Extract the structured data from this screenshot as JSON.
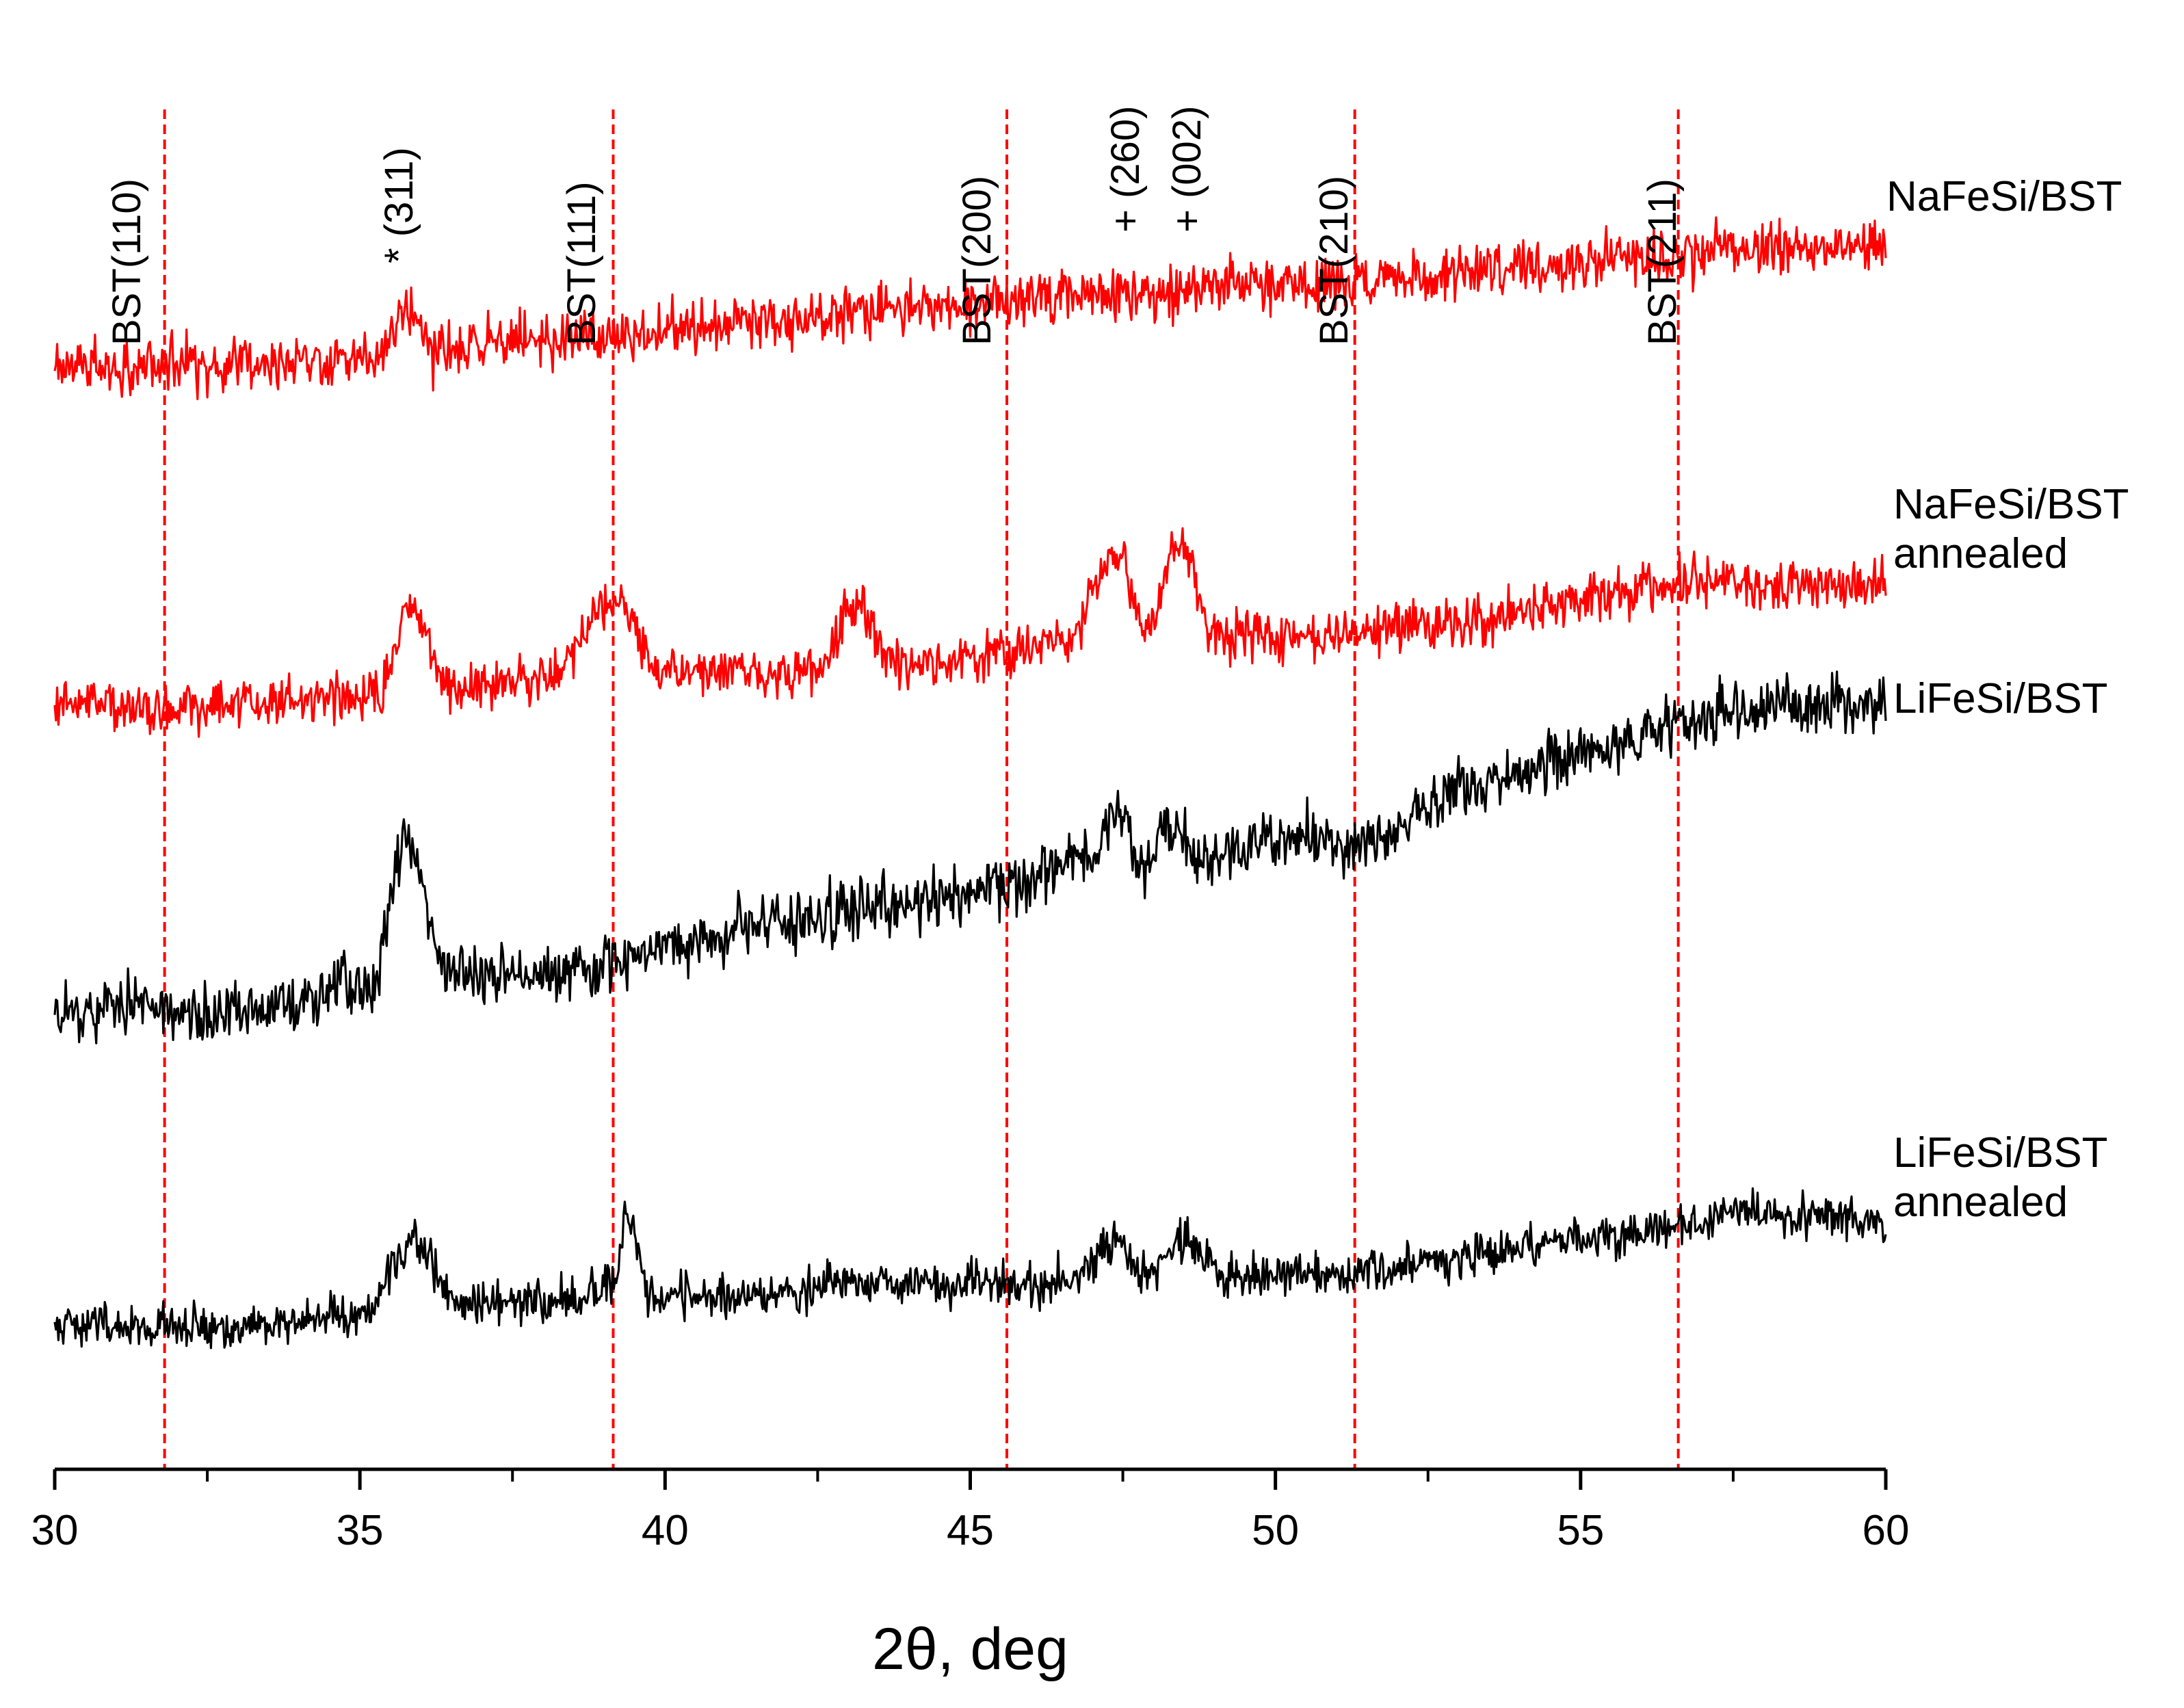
{
  "chart_data": {
    "type": "line",
    "title": "",
    "xlabel": "2θ, deg",
    "ylabel": "",
    "xlim": [
      30,
      60
    ],
    "xticks": [
      30,
      35,
      40,
      45,
      50,
      55,
      60
    ],
    "xtick_labels": [
      "30",
      "35",
      "40",
      "45",
      "50",
      "55",
      "60"
    ],
    "minor_tick_step": 2.5,
    "y_axis_visible": false,
    "grid": false,
    "reference_lines": [
      {
        "x": 31.8,
        "label": "BST(110)",
        "color": "#ff0000"
      },
      {
        "x": 39.15,
        "label": "BST(111)",
        "color": "#ff0000"
      },
      {
        "x": 45.6,
        "label": "BST(200)",
        "color": "#ff0000"
      },
      {
        "x": 51.3,
        "label": "BST(210)",
        "color": "#ff0000"
      },
      {
        "x": 56.6,
        "label": "BST(211)",
        "color": "#ff0000"
      }
    ],
    "peak_markers": [
      {
        "x": 35.7,
        "label": "* (311)"
      },
      {
        "x": 47.4,
        "label": "+ (260)"
      },
      {
        "x": 48.4,
        "label": "+ (002)"
      }
    ],
    "series": [
      {
        "name": "NaFeSi/BST",
        "label_lines": [
          "NaFeSi/BST"
        ],
        "color": "#ff0000",
        "noise": 9,
        "x": [
          30,
          32,
          34,
          35.3,
          35.75,
          36.2,
          38,
          39.15,
          40,
          42,
          43.5,
          45,
          46,
          48,
          50,
          51.3,
          52,
          54,
          56,
          58,
          60
        ],
        "y": [
          0.55,
          0.55,
          0.6,
          0.62,
          1.1,
          0.7,
          0.78,
          0.82,
          0.9,
          1.0,
          1.1,
          1.15,
          1.2,
          1.28,
          1.35,
          1.38,
          1.42,
          1.52,
          1.6,
          1.68,
          1.75
        ]
      },
      {
        "name": "NaFeSi/BST annealed",
        "label_lines": [
          "NaFeSi/BST",
          "annealed"
        ],
        "color": "#ff0000",
        "noise": 8,
        "x": [
          30,
          31.8,
          33,
          35.3,
          35.8,
          36.5,
          38,
          39.2,
          40,
          42.5,
          43.1,
          43.8,
          45,
          46.5,
          47.4,
          47.9,
          48.4,
          49,
          51,
          53,
          55,
          57.3,
          58,
          60
        ],
        "y": [
          0.05,
          0.0,
          0.05,
          0.1,
          0.85,
          0.15,
          0.25,
          0.9,
          0.3,
          0.3,
          0.9,
          0.35,
          0.4,
          0.55,
          1.25,
          0.7,
          1.4,
          0.6,
          0.6,
          0.72,
          0.9,
          1.1,
          1.0,
          1.05
        ]
      },
      {
        "name": "LiFeSi/BST",
        "label_lines": [
          "LiFeSi/BST"
        ],
        "color": "#000000",
        "noise": 10,
        "x": [
          30,
          31.8,
          33,
          35.2,
          35.75,
          36.4,
          38,
          39.15,
          40,
          42,
          44,
          45.6,
          47,
          47.4,
          47.8,
          48.3,
          48.8,
          50,
          51.3,
          53,
          55,
          57,
          58.9,
          60
        ],
        "y": [
          0.0,
          0.05,
          0.0,
          0.2,
          1.25,
          0.3,
          0.25,
          0.35,
          0.45,
          0.65,
          0.8,
          0.9,
          1.1,
          1.5,
          1.0,
          1.35,
          1.05,
          1.25,
          1.2,
          1.6,
          1.85,
          2.1,
          2.2,
          2.2
        ]
      },
      {
        "name": "LiFeSi/BST annealed",
        "label_lines": [
          "LiFeSi/BST",
          "annealed"
        ],
        "color": "#000000",
        "noise": 7,
        "x": [
          30,
          31.8,
          33,
          35,
          35.9,
          36.6,
          38,
          39.15,
          39.35,
          39.8,
          42,
          43,
          45,
          46.5,
          47.4,
          47.9,
          48.5,
          49.1,
          51,
          53,
          55,
          56.6,
          57.4,
          58.5,
          60
        ],
        "y": [
          0.05,
          0.0,
          0.0,
          0.1,
          0.75,
          0.2,
          0.2,
          0.35,
          0.95,
          0.25,
          0.3,
          0.4,
          0.35,
          0.4,
          0.7,
          0.45,
          0.75,
          0.45,
          0.45,
          0.6,
          0.75,
          0.85,
          1.0,
          0.95,
          0.9
        ]
      }
    ]
  }
}
